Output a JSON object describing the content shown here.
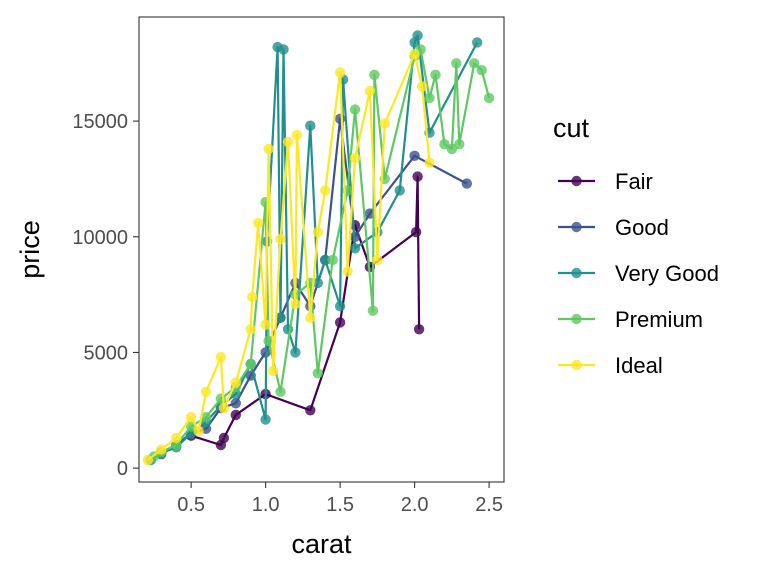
{
  "chart_data": {
    "type": "line",
    "xlabel": "carat",
    "ylabel": "price",
    "xlim": [
      0.15,
      2.6
    ],
    "ylim": [
      -600,
      19500
    ],
    "x_ticks": [
      0.5,
      1.0,
      1.5,
      2.0,
      2.5
    ],
    "x_tick_labels": [
      "0.5",
      "1.0",
      "1.5",
      "2.0",
      "2.5"
    ],
    "y_ticks": [
      0,
      5000,
      10000,
      15000
    ],
    "y_tick_labels": [
      "0",
      "5000",
      "10000",
      "15000"
    ],
    "grid": false,
    "legend": {
      "title": "cut",
      "position": "right"
    },
    "series": [
      {
        "name": "Fair",
        "color": "#440154",
        "points": [
          [
            0.5,
            1400
          ],
          [
            0.7,
            1000
          ],
          [
            0.72,
            1300
          ],
          [
            0.8,
            2300
          ],
          [
            1.0,
            3200
          ],
          [
            1.3,
            2500
          ],
          [
            1.5,
            6300
          ],
          [
            1.6,
            10500
          ],
          [
            1.7,
            8700
          ],
          [
            2.01,
            10200
          ],
          [
            2.02,
            12600
          ],
          [
            2.03,
            6000
          ]
        ]
      },
      {
        "name": "Good",
        "color": "#3b528b",
        "points": [
          [
            0.3,
            600
          ],
          [
            0.4,
            1000
          ],
          [
            0.5,
            1500
          ],
          [
            0.6,
            1700
          ],
          [
            0.7,
            2600
          ],
          [
            0.8,
            2800
          ],
          [
            0.9,
            4000
          ],
          [
            1.0,
            5000
          ],
          [
            1.1,
            6500
          ],
          [
            1.2,
            8000
          ],
          [
            1.3,
            7000
          ],
          [
            1.4,
            9000
          ],
          [
            1.5,
            15100
          ],
          [
            1.6,
            10000
          ],
          [
            1.7,
            11000
          ],
          [
            2.0,
            13500
          ],
          [
            2.35,
            12300
          ]
        ]
      },
      {
        "name": "Very Good",
        "color": "#21908c",
        "points": [
          [
            0.23,
            350
          ],
          [
            0.3,
            650
          ],
          [
            0.4,
            900
          ],
          [
            0.5,
            1500
          ],
          [
            0.6,
            2000
          ],
          [
            0.7,
            2700
          ],
          [
            0.8,
            3200
          ],
          [
            0.9,
            4500
          ],
          [
            1.0,
            2100
          ],
          [
            1.01,
            9800
          ],
          [
            1.08,
            18200
          ],
          [
            1.1,
            6500
          ],
          [
            1.12,
            18100
          ],
          [
            1.15,
            6000
          ],
          [
            1.2,
            5000
          ],
          [
            1.3,
            14800
          ],
          [
            1.35,
            8000
          ],
          [
            1.4,
            9000
          ],
          [
            1.5,
            7000
          ],
          [
            1.52,
            16800
          ],
          [
            1.6,
            9500
          ],
          [
            1.75,
            10200
          ],
          [
            1.9,
            12000
          ],
          [
            2.0,
            18400
          ],
          [
            2.02,
            18700
          ],
          [
            2.1,
            14500
          ],
          [
            2.42,
            18400
          ]
        ]
      },
      {
        "name": "Premium",
        "color": "#5ec962",
        "points": [
          [
            0.25,
            500
          ],
          [
            0.3,
            700
          ],
          [
            0.4,
            1000
          ],
          [
            0.5,
            1800
          ],
          [
            0.6,
            2200
          ],
          [
            0.7,
            3000
          ],
          [
            0.8,
            3500
          ],
          [
            0.9,
            4500
          ],
          [
            1.0,
            11500
          ],
          [
            1.02,
            5500
          ],
          [
            1.1,
            3300
          ],
          [
            1.2,
            7500
          ],
          [
            1.3,
            8000
          ],
          [
            1.35,
            4100
          ],
          [
            1.45,
            9000
          ],
          [
            1.55,
            12000
          ],
          [
            1.6,
            15500
          ],
          [
            1.72,
            6800
          ],
          [
            1.73,
            17000
          ],
          [
            1.8,
            12500
          ],
          [
            2.0,
            17800
          ],
          [
            2.04,
            18100
          ],
          [
            2.1,
            16000
          ],
          [
            2.14,
            17000
          ],
          [
            2.2,
            14000
          ],
          [
            2.25,
            13800
          ],
          [
            2.28,
            17500
          ],
          [
            2.3,
            14000
          ],
          [
            2.4,
            17500
          ],
          [
            2.45,
            17200
          ],
          [
            2.5,
            16000
          ]
        ]
      },
      {
        "name": "Ideal",
        "color": "#fde725",
        "points": [
          [
            0.21,
            350
          ],
          [
            0.3,
            800
          ],
          [
            0.4,
            1300
          ],
          [
            0.5,
            2200
          ],
          [
            0.55,
            1600
          ],
          [
            0.6,
            3300
          ],
          [
            0.7,
            4800
          ],
          [
            0.72,
            2600
          ],
          [
            0.8,
            3700
          ],
          [
            0.9,
            6000
          ],
          [
            0.91,
            7400
          ],
          [
            0.95,
            10600
          ],
          [
            1.0,
            6200
          ],
          [
            1.02,
            13800
          ],
          [
            1.05,
            4200
          ],
          [
            1.1,
            9900
          ],
          [
            1.15,
            14100
          ],
          [
            1.2,
            7100
          ],
          [
            1.21,
            14400
          ],
          [
            1.3,
            6500
          ],
          [
            1.35,
            10200
          ],
          [
            1.4,
            12000
          ],
          [
            1.5,
            17100
          ],
          [
            1.55,
            8500
          ],
          [
            1.6,
            13400
          ],
          [
            1.7,
            16300
          ],
          [
            1.75,
            9000
          ],
          [
            1.8,
            14900
          ],
          [
            2.0,
            17900
          ],
          [
            2.05,
            16500
          ],
          [
            2.1,
            13200
          ]
        ]
      }
    ]
  }
}
